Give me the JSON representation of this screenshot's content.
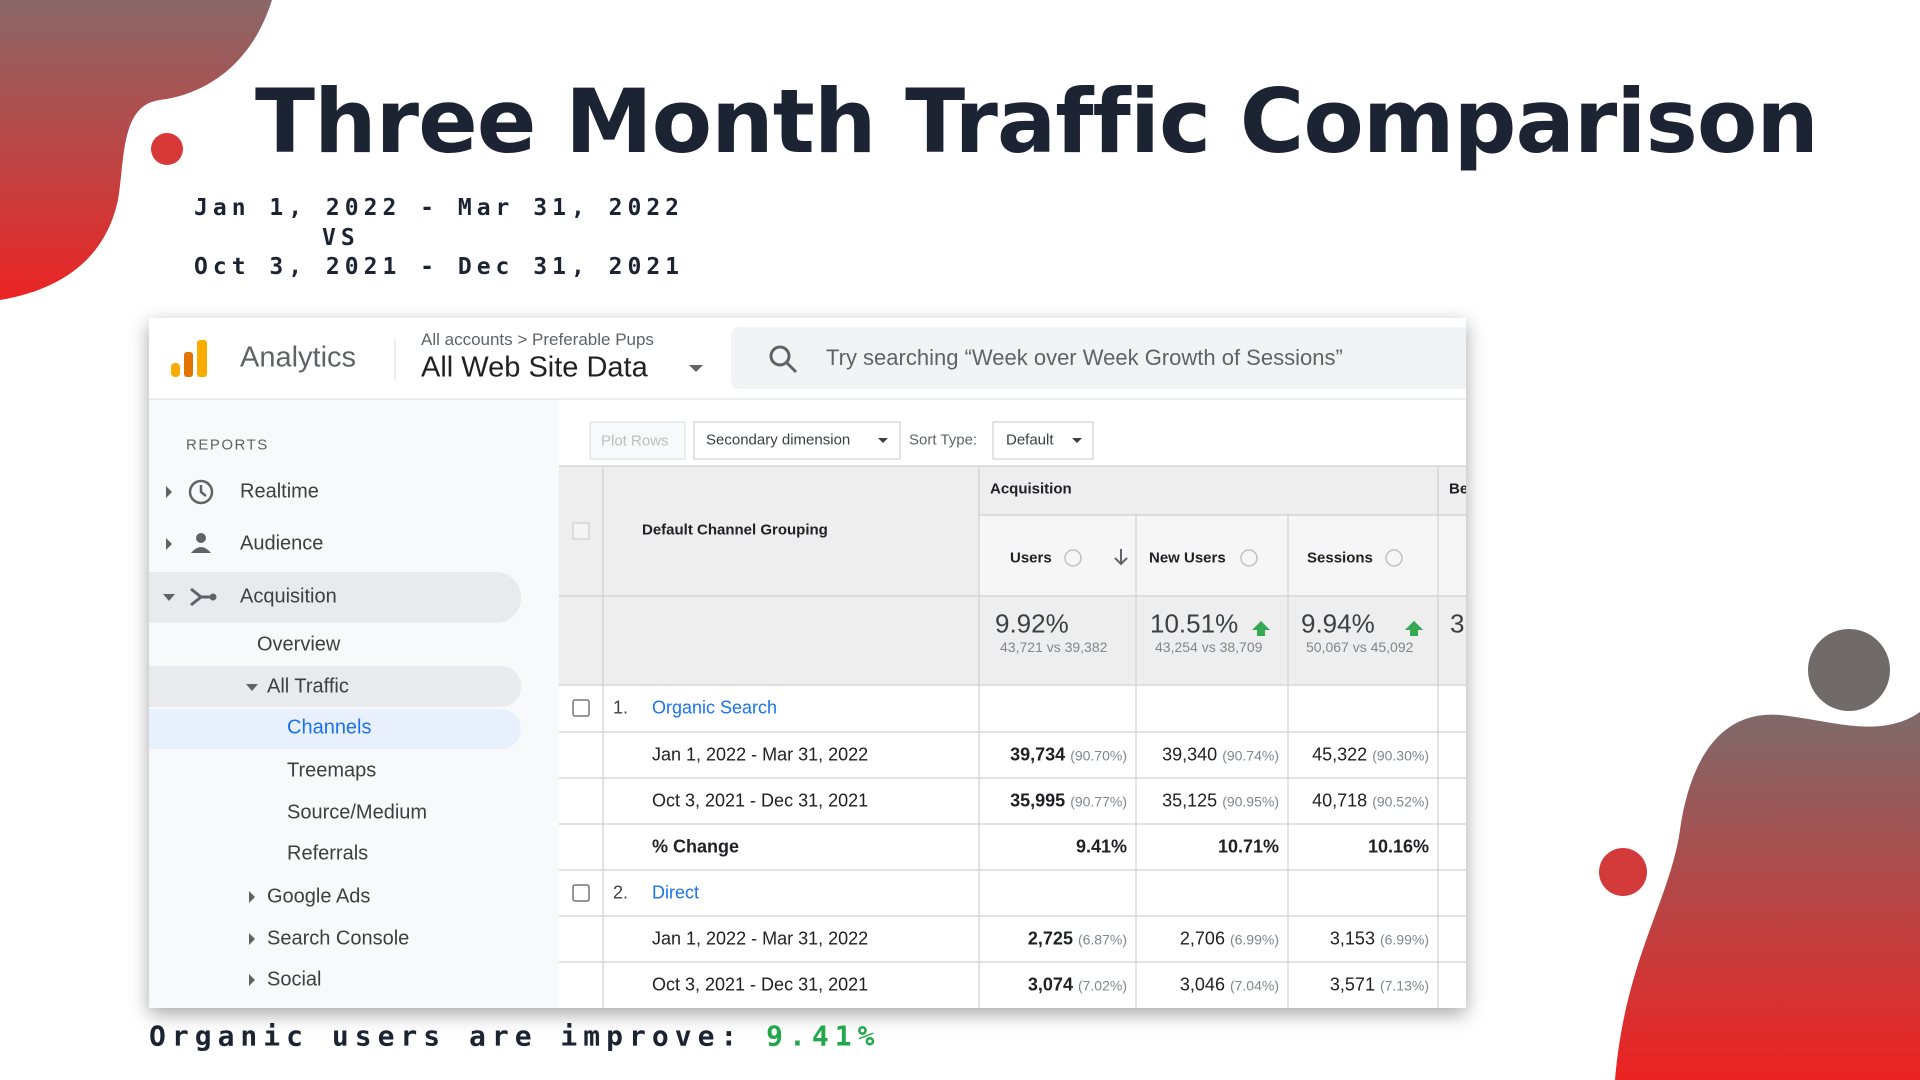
{
  "title": "Three Month Traffic Comparison",
  "date_range": {
    "current": "Jan 1, 2022 - Mar 31, 2022",
    "vs": "VS",
    "previous": "Oct 3, 2021 - Dec 31, 2021"
  },
  "footer": {
    "label": "Organic users are improve:",
    "value": "9.41%"
  },
  "screenshot": {
    "header": {
      "app": "Analytics",
      "breadcrumb": "All accounts > Preferable Pups",
      "view": "All Web Site Data",
      "search": "Try searching “Week over Week Growth of Sessions”"
    },
    "sidebar": {
      "heading": "REPORTS",
      "items": [
        "Realtime",
        "Audience",
        "Acquisition",
        "Overview",
        "All Traffic",
        "Channels",
        "Treemaps",
        "Source/Medium",
        "Referrals",
        "Google Ads",
        "Search Console",
        "Social"
      ]
    },
    "toolbar": {
      "plot_rows": "Plot Rows",
      "secondary": "Secondary dimension",
      "sort_label": "Sort Type:",
      "sort_value": "Default"
    },
    "table": {
      "group_header": "Acquisition",
      "next_group": "Be",
      "dimension": "Default Channel Grouping",
      "columns": [
        "Users",
        "New Users",
        "Sessions"
      ],
      "totals": [
        {
          "change": "9.92%",
          "compare": "43,721 vs 39,382"
        },
        {
          "change": "10.51%",
          "compare": "43,254 vs 38,709"
        },
        {
          "change": "9.94%",
          "compare": "50,067 vs 45,092"
        }
      ],
      "totals_next": "3",
      "rows": [
        {
          "index": "1.",
          "channel": "Organic Search",
          "lines": [
            {
              "label": "Jan 1, 2022 - Mar 31, 2022",
              "cells": [
                {
                  "value": "39,734",
                  "share": "(90.70%)"
                },
                {
                  "value": "39,340",
                  "share": "(90.74%)"
                },
                {
                  "value": "45,322",
                  "share": "(90.30%)"
                }
              ]
            },
            {
              "label": "Oct 3, 2021 - Dec 31, 2021",
              "cells": [
                {
                  "value": "35,995",
                  "share": "(90.77%)"
                },
                {
                  "value": "35,125",
                  "share": "(90.95%)"
                },
                {
                  "value": "40,718",
                  "share": "(90.52%)"
                }
              ]
            },
            {
              "label": "% Change",
              "cells": [
                {
                  "value": "9.41%"
                },
                {
                  "value": "10.71%"
                },
                {
                  "value": "10.16%"
                }
              ]
            }
          ]
        },
        {
          "index": "2.",
          "channel": "Direct",
          "lines": [
            {
              "label": "Jan 1, 2022 - Mar 31, 2022",
              "cells": [
                {
                  "value": "2,725",
                  "share": "(6.87%)"
                },
                {
                  "value": "2,706",
                  "share": "(6.99%)"
                },
                {
                  "value": "3,153",
                  "share": "(6.99%)"
                }
              ]
            },
            {
              "label": "Oct 3, 2021 - Dec 31, 2021",
              "cells": [
                {
                  "value": "3,074",
                  "share": "(7.02%)"
                },
                {
                  "value": "3,046",
                  "share": "(7.04%)"
                },
                {
                  "value": "3,571",
                  "share": "(7.13%)"
                }
              ]
            }
          ]
        }
      ]
    }
  }
}
